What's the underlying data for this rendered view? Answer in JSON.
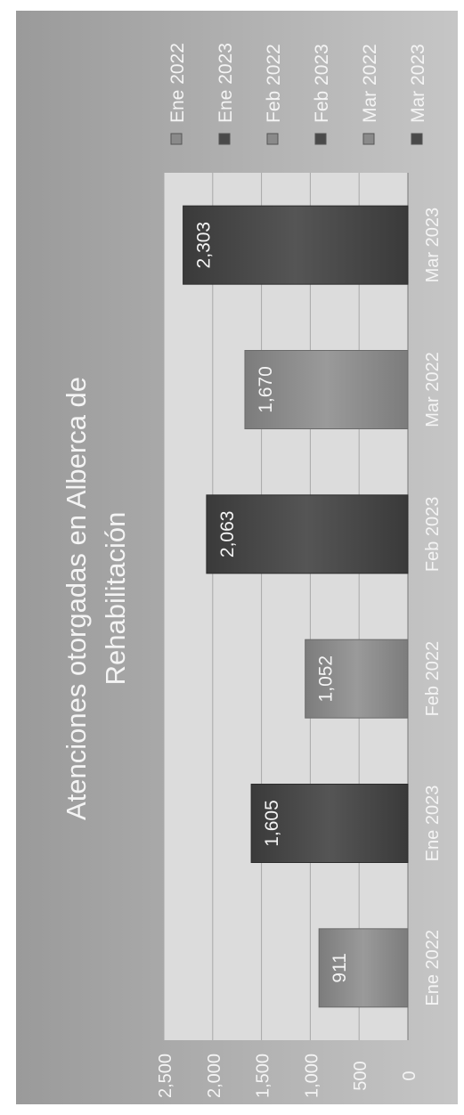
{
  "chart_data": {
    "type": "bar",
    "title": "Atenciones otorgadas en Alberca de Rehabilitación",
    "title_lines": [
      "Atenciones otorgadas en Alberca de",
      "Rehabilitación"
    ],
    "categories": [
      "Ene 2022",
      "Ene 2023",
      "Feb 2022",
      "Feb 2023",
      "Mar 2022",
      "Mar 2023"
    ],
    "values": [
      911,
      1605,
      1052,
      2063,
      1670,
      2303
    ],
    "value_labels": [
      "911",
      "1,605",
      "1,052",
      "2,063",
      "1,670",
      "2,303"
    ],
    "y_ticks": [
      "0",
      "500",
      "1,000",
      "1,500",
      "2,000",
      "2,500"
    ],
    "ylim": [
      0,
      2500
    ],
    "grid": true,
    "legend_position": "right",
    "legend": [
      "Ene 2022",
      "Ene 2023",
      "Feb 2022",
      "Feb 2023",
      "Mar 2022",
      "Mar 2023"
    ],
    "colors": [
      "#8a8a8a",
      "#4a4a4a",
      "#8a8a8a",
      "#4a4a4a",
      "#8a8a8a",
      "#4a4a4a"
    ],
    "orientation": "rotated 90 degrees clockwise"
  }
}
